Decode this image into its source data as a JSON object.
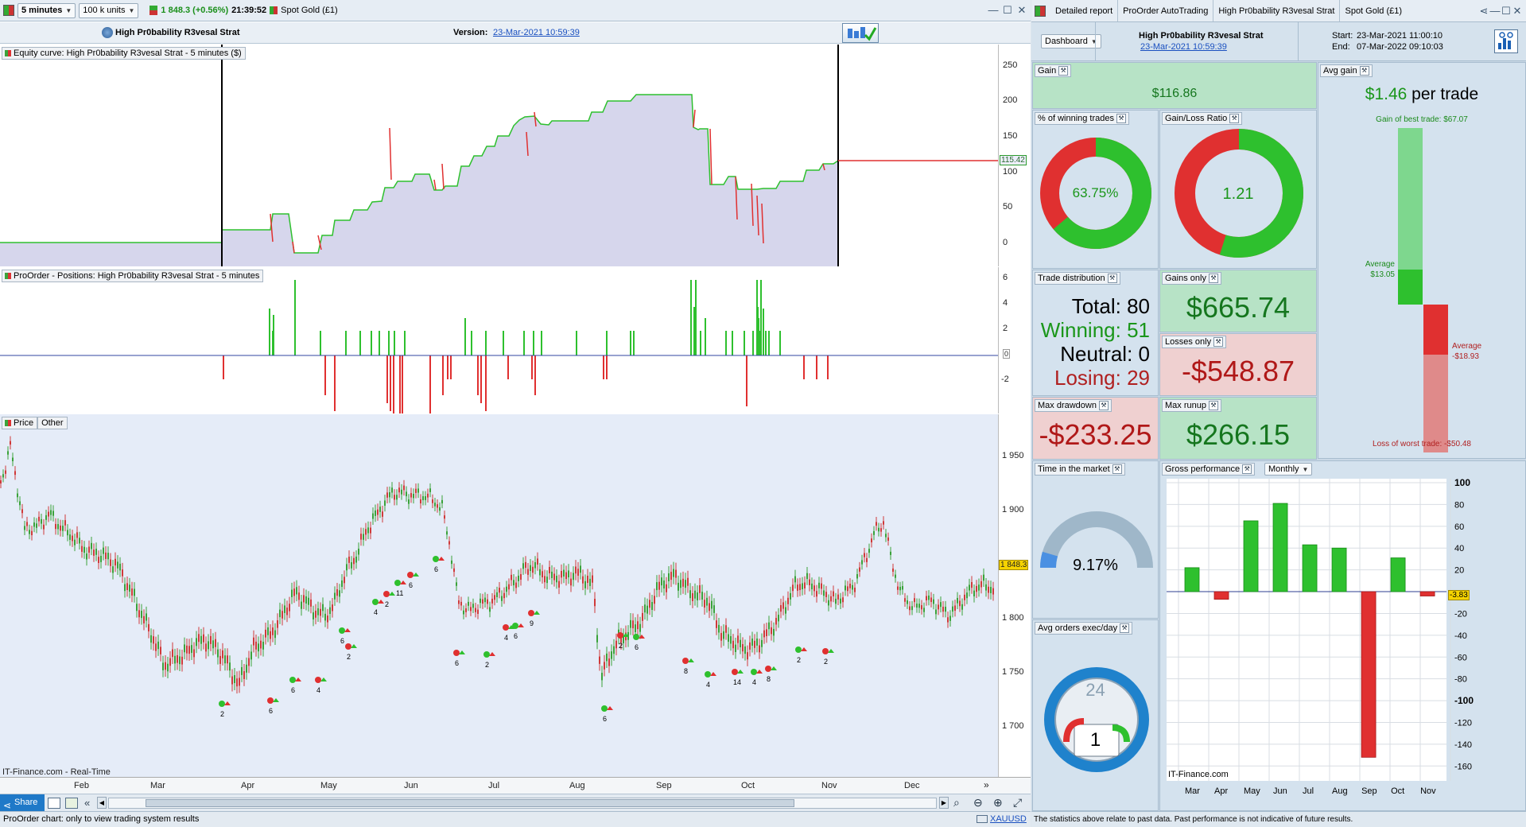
{
  "toolbar": {
    "timeframe": "5 minutes",
    "units": "100 k units",
    "price_change": "1 848.3 (+0.56%)",
    "time": "21:39:52",
    "instrument": "Spot Gold (£1)"
  },
  "header": {
    "strategy_name": "High Pr0bability R3vesal Strat",
    "version_label": "Version:",
    "version_date": "23-Mar-2021 10:59:39"
  },
  "equity_panel": {
    "label": "Equity curve: High Pr0bability R3vesal Strat - 5 minutes ($)",
    "current_value": "115.42",
    "ticks": [
      "250",
      "200",
      "150",
      "100",
      "50",
      "0"
    ]
  },
  "positions_panel": {
    "label": "ProOrder - Positions: High Pr0bability R3vesal Strat - 5 minutes",
    "ticks": [
      "6",
      "4",
      "2",
      "0",
      "-2"
    ]
  },
  "price_panel": {
    "label_price": "Price",
    "label_other": "Other",
    "current_price": "1 848.3",
    "ticks": [
      "1 950",
      "1 900",
      "1 850",
      "1 800",
      "1 750",
      "1 700"
    ],
    "source": "IT-Finance.com - Real-Time",
    "months": [
      "Feb",
      "Mar",
      "Apr",
      "May",
      "Jun",
      "Jul",
      "Aug",
      "Sep",
      "Oct",
      "Nov",
      "Dec"
    ],
    "trade_counts": [
      "2",
      "6",
      "6",
      "4",
      "6",
      "2",
      "4",
      "2",
      "11",
      "6",
      "6",
      "6",
      "2",
      "4",
      "6",
      "9",
      "6",
      "2",
      "6",
      "8",
      "4",
      "14",
      "4",
      "8",
      "2",
      "2"
    ]
  },
  "bottom": {
    "share_label": "Share",
    "status_text": "ProOrder chart: only to view trading system results",
    "symbol": "XAUUSD"
  },
  "right": {
    "tabs": [
      "Detailed report",
      "ProOrder AutoTrading",
      "High Pr0bability R3vesal Strat",
      "Spot Gold (£1)"
    ],
    "dashboard_label": "Dashboard",
    "strategy_name": "High Pr0bability R3vesal Strat",
    "strategy_date": "23-Mar-2021 10:59:39",
    "start_label": "Start:",
    "start_value": "23-Mar-2021 11:00:10",
    "end_label": "End:",
    "end_value": "07-Mar-2022 09:10:03",
    "gain_label": "Gain",
    "gain_value": "$116.86",
    "avg_gain_label": "Avg gain",
    "avg_gain_value": "$1.46",
    "avg_gain_unit": "per trade",
    "best_trade": "Gain of best trade: $67.07",
    "avg_win_label": "Average",
    "avg_win_value": "$13.05",
    "avg_loss_label": "Average",
    "avg_loss_value": "-$18.93",
    "worst_trade": "Loss of worst trade: -$50.48",
    "pct_win_label": "% of winning trades",
    "pct_win_value": "63.75%",
    "pct_win_fraction": 0.6375,
    "gl_ratio_label": "Gain/Loss Ratio",
    "gl_ratio_value": "1.21",
    "gl_ratio_fraction": 0.548,
    "trade_dist_label": "Trade distribution",
    "total": "Total: 80",
    "winning": "Winning: 51",
    "neutral": "Neutral: 0",
    "losing": "Losing: 29",
    "gains_only_label": "Gains only",
    "gains_only_value": "$665.74",
    "losses_only_label": "Losses only",
    "losses_only_value": "-$548.87",
    "max_dd_label": "Max drawdown",
    "max_dd_value": "-$233.25",
    "max_runup_label": "Max runup",
    "max_runup_value": "$266.15",
    "time_market_label": "Time in the market",
    "time_market_value": "9.17%",
    "time_market_fraction": 0.0917,
    "avg_orders_label": "Avg orders exec/day",
    "avg_orders_hours": "24",
    "avg_orders_value": "1",
    "gross_label": "Gross performance",
    "gross_period": "Monthly",
    "gross_source": "IT-Finance.com",
    "gross_current": "-3.83",
    "disclaimer": "The statistics above relate to past data. Past performance is not indicative of future results."
  },
  "chart_data": {
    "type": "bar",
    "title": "Gross performance",
    "categories": [
      "Mar",
      "Apr",
      "May",
      "Jun",
      "Jul",
      "Aug",
      "Sep",
      "Oct",
      "Nov"
    ],
    "values": [
      22,
      -7,
      65,
      81,
      43,
      40,
      -152,
      31,
      -4
    ],
    "ylim": [
      -170,
      100
    ],
    "yticks": [
      100,
      80,
      60,
      40,
      20,
      -20,
      -40,
      -60,
      -80,
      -100,
      -120,
      -140,
      -160
    ],
    "grid": true
  },
  "colors": {
    "green": "#2ec02e",
    "red": "#e03030",
    "accent": "#1a5fb4"
  }
}
